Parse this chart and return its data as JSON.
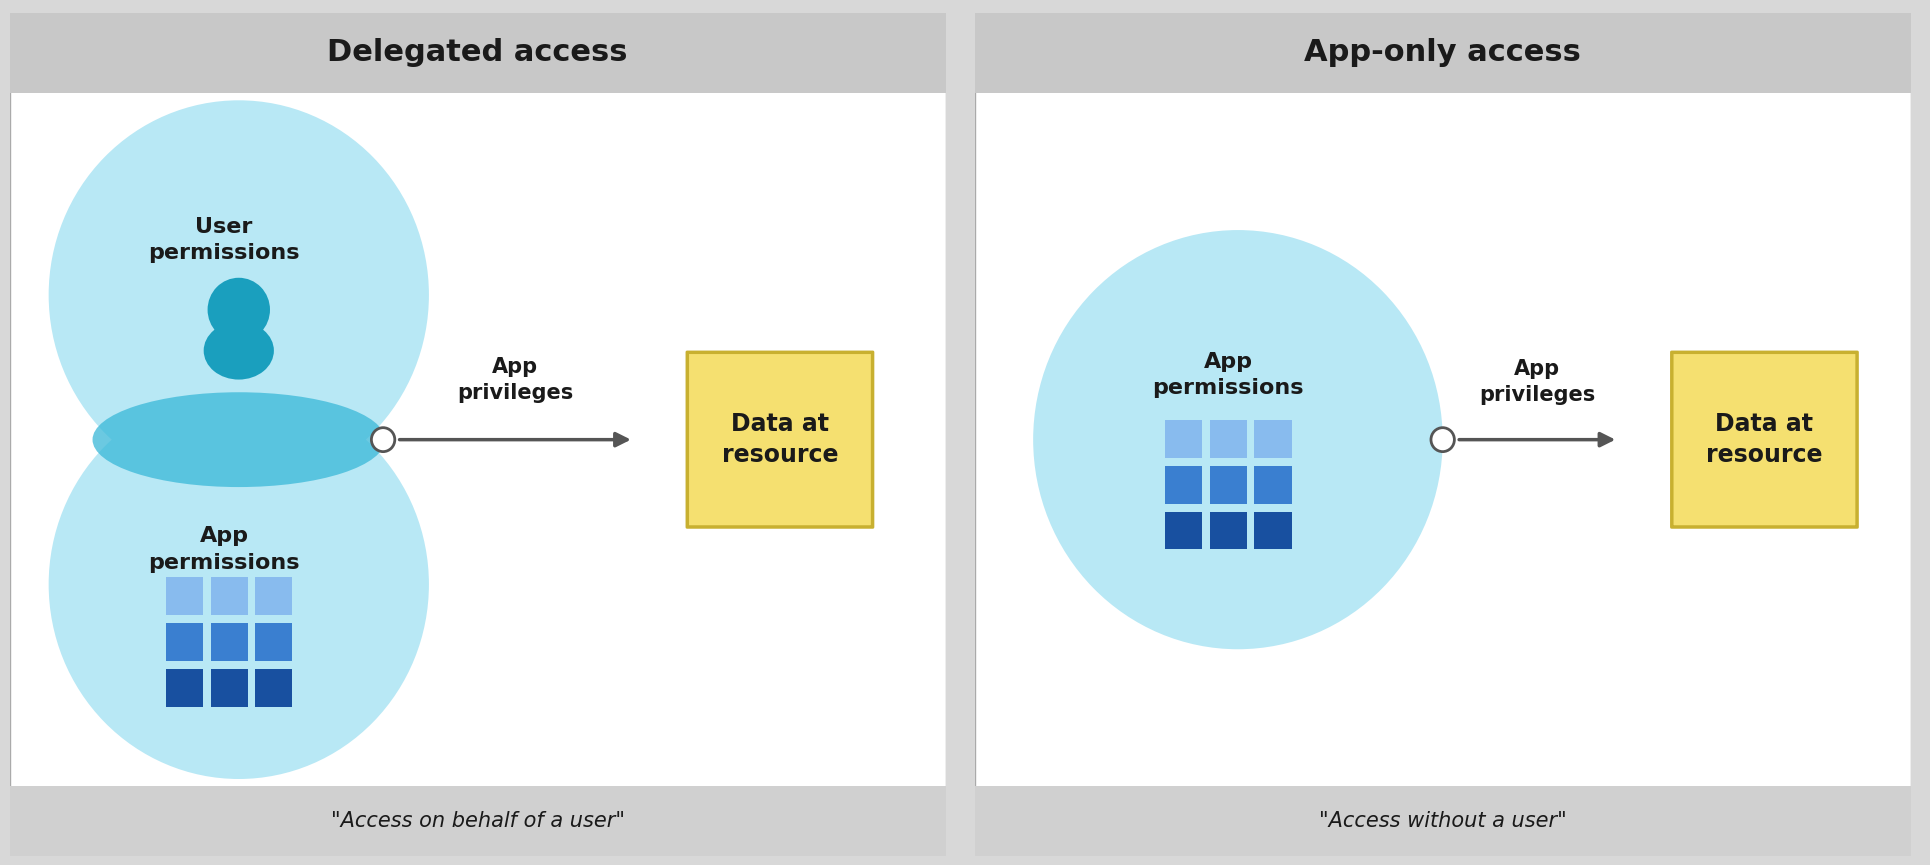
{
  "fig_width": 19.3,
  "fig_height": 8.65,
  "bg_color": "#d8d8d8",
  "panel_bg": "#ffffff",
  "header_bg": "#c8c8c8",
  "footer_bg": "#d0d0d0",
  "light_blue": "#b8e8f5",
  "teal_inter": "#3ab8d8",
  "teal_person": "#1a9fbe",
  "arrow_color": "#555555",
  "box_color": "#f5e070",
  "box_border": "#c8b030",
  "text_dark": "#1a1a1a",
  "white": "#ffffff",
  "grid_blue_light": "#88bbee",
  "grid_blue_mid": "#3a7fd0",
  "grid_blue_dark": "#1850a0",
  "left_title": "Delegated access",
  "right_title": "App-only access",
  "left_footer": "\"Access on behalf of a user\"",
  "right_footer": "\"Access without a user\"",
  "left_label1": "User\npermissions",
  "left_label2": "App\npermissions",
  "left_arrow_label": "App\nprivileges",
  "left_box_label": "Data at\nresource",
  "right_label": "App\npermissions",
  "right_arrow_label": "App\nprivileges",
  "right_box_label": "Data at\nresource"
}
